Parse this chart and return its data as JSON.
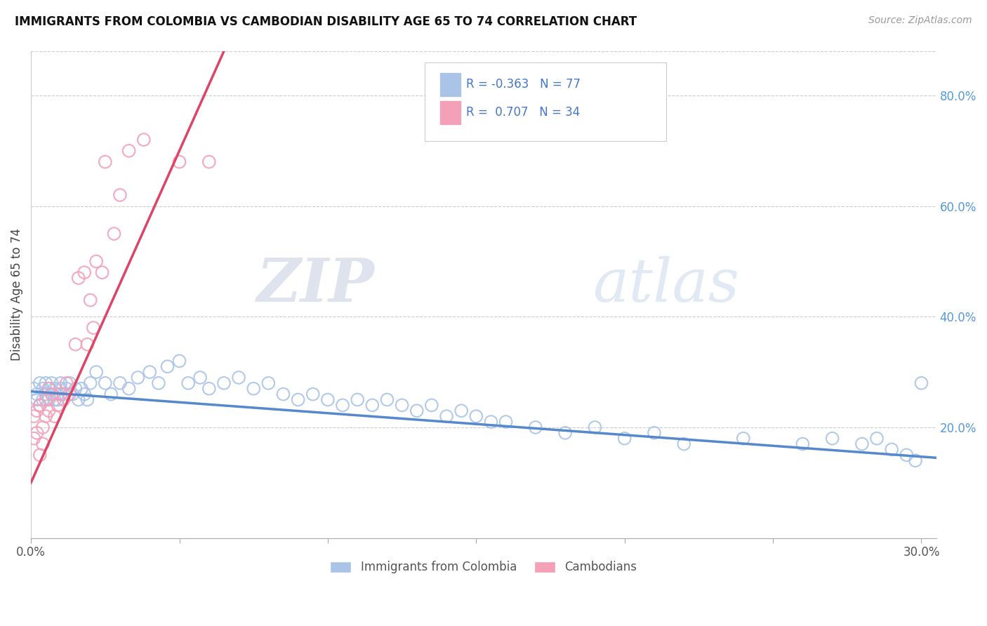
{
  "title": "IMMIGRANTS FROM COLOMBIA VS CAMBODIAN DISABILITY AGE 65 TO 74 CORRELATION CHART",
  "source": "Source: ZipAtlas.com",
  "ylabel": "Disability Age 65 to 74",
  "xlim": [
    0.0,
    0.305
  ],
  "ylim": [
    0.0,
    0.88
  ],
  "x_ticks": [
    0.0,
    0.05,
    0.1,
    0.15,
    0.2,
    0.25,
    0.3
  ],
  "x_tick_labels": [
    "0.0%",
    "",
    "",
    "",
    "",
    "",
    "30.0%"
  ],
  "y_ticks_right": [
    0.2,
    0.4,
    0.6,
    0.8
  ],
  "y_tick_labels_right": [
    "20.0%",
    "40.0%",
    "60.0%",
    "80.0%"
  ],
  "colombia_color": "#aac4e8",
  "cambodia_color": "#f4a0b8",
  "colombia_line_color": "#5588cc",
  "cambodia_line_color": "#dd4466",
  "colombia_R": -0.363,
  "colombia_N": 77,
  "cambodia_R": 0.707,
  "cambodia_N": 34,
  "legend_R_color": "#4477cc",
  "watermark_zip": "ZIP",
  "watermark_atlas": "atlas",
  "colombia_x": [
    0.001,
    0.002,
    0.002,
    0.003,
    0.003,
    0.004,
    0.004,
    0.005,
    0.005,
    0.006,
    0.006,
    0.007,
    0.007,
    0.008,
    0.008,
    0.009,
    0.009,
    0.01,
    0.01,
    0.011,
    0.012,
    0.013,
    0.014,
    0.015,
    0.016,
    0.017,
    0.018,
    0.019,
    0.02,
    0.022,
    0.025,
    0.027,
    0.03,
    0.033,
    0.036,
    0.04,
    0.043,
    0.046,
    0.05,
    0.053,
    0.057,
    0.06,
    0.065,
    0.07,
    0.075,
    0.08,
    0.085,
    0.09,
    0.095,
    0.1,
    0.105,
    0.11,
    0.115,
    0.12,
    0.125,
    0.13,
    0.135,
    0.14,
    0.145,
    0.15,
    0.155,
    0.16,
    0.17,
    0.18,
    0.19,
    0.2,
    0.21,
    0.22,
    0.24,
    0.26,
    0.27,
    0.28,
    0.285,
    0.29,
    0.295,
    0.298,
    0.3
  ],
  "colombia_y": [
    0.27,
    0.26,
    0.25,
    0.28,
    0.24,
    0.27,
    0.25,
    0.26,
    0.28,
    0.25,
    0.27,
    0.26,
    0.28,
    0.25,
    0.27,
    0.26,
    0.25,
    0.27,
    0.28,
    0.26,
    0.27,
    0.28,
    0.26,
    0.27,
    0.25,
    0.27,
    0.26,
    0.25,
    0.28,
    0.3,
    0.28,
    0.26,
    0.28,
    0.27,
    0.29,
    0.3,
    0.28,
    0.31,
    0.32,
    0.28,
    0.29,
    0.27,
    0.28,
    0.29,
    0.27,
    0.28,
    0.26,
    0.25,
    0.26,
    0.25,
    0.24,
    0.25,
    0.24,
    0.25,
    0.24,
    0.23,
    0.24,
    0.22,
    0.23,
    0.22,
    0.21,
    0.21,
    0.2,
    0.19,
    0.2,
    0.18,
    0.19,
    0.17,
    0.18,
    0.17,
    0.18,
    0.17,
    0.18,
    0.16,
    0.15,
    0.14,
    0.28
  ],
  "cambodia_x": [
    0.001,
    0.001,
    0.002,
    0.002,
    0.003,
    0.003,
    0.004,
    0.004,
    0.005,
    0.005,
    0.006,
    0.006,
    0.007,
    0.008,
    0.009,
    0.01,
    0.011,
    0.012,
    0.013,
    0.015,
    0.016,
    0.018,
    0.019,
    0.02,
    0.021,
    0.022,
    0.024,
    0.025,
    0.028,
    0.03,
    0.033,
    0.038,
    0.05,
    0.06
  ],
  "cambodia_y": [
    0.22,
    0.18,
    0.23,
    0.19,
    0.24,
    0.15,
    0.2,
    0.17,
    0.25,
    0.22,
    0.27,
    0.23,
    0.26,
    0.22,
    0.24,
    0.26,
    0.25,
    0.28,
    0.26,
    0.35,
    0.47,
    0.48,
    0.35,
    0.43,
    0.38,
    0.5,
    0.48,
    0.68,
    0.55,
    0.62,
    0.7,
    0.72,
    0.68,
    0.68
  ],
  "colombia_trend_x": [
    0.0,
    0.305
  ],
  "colombia_trend_y": [
    0.265,
    0.145
  ],
  "cambodia_trend_x": [
    0.0,
    0.065
  ],
  "cambodia_trend_y": [
    0.1,
    0.88
  ]
}
